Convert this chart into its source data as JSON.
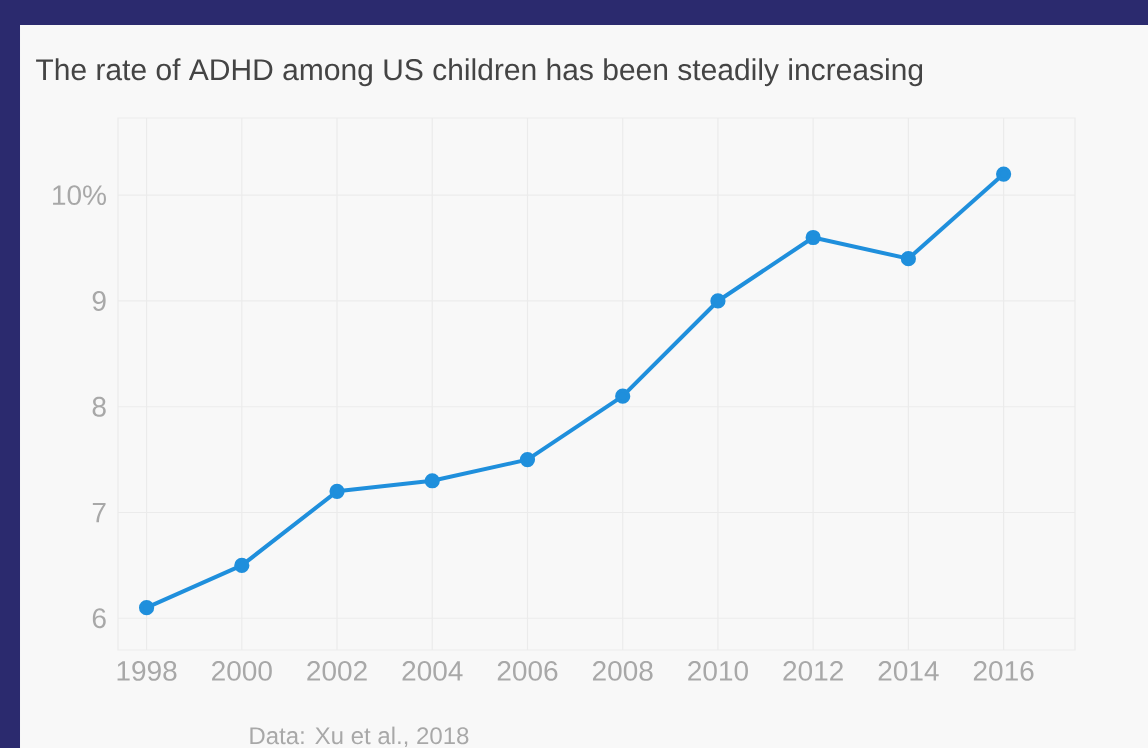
{
  "chart_data": {
    "type": "line",
    "title": "The rate of ADHD among US children has been steadily increasing",
    "x": [
      1998,
      2000,
      2002,
      2004,
      2006,
      2008,
      2010,
      2012,
      2014,
      2016
    ],
    "values": [
      6.1,
      6.5,
      7.2,
      7.3,
      7.5,
      8.1,
      9.0,
      9.6,
      9.4,
      10.2
    ],
    "color": "#1f8fdc",
    "xlim": [
      1997.4,
      2017.5
    ],
    "ylim": [
      5.7,
      10.73
    ],
    "xticks": [
      1998,
      2000,
      2002,
      2004,
      2006,
      2008,
      2010,
      2012,
      2014,
      2016
    ],
    "yticks": [
      6,
      7,
      8,
      9,
      {
        "value": 10,
        "label": "10%"
      }
    ],
    "grid": true,
    "marker": "circle",
    "annotations": [
      "Data: Xu et al., 2018"
    ]
  }
}
